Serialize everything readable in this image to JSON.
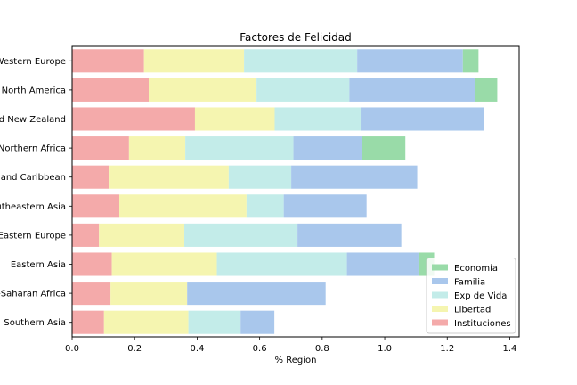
{
  "chart_data": {
    "type": "bar",
    "orientation": "horizontal",
    "stacked": true,
    "title": "Factores de Felicidad",
    "xlabel": "% Region",
    "ylabel": "",
    "xlim": [
      0,
      1.43
    ],
    "xticks": [
      0.0,
      0.2,
      0.4,
      0.6,
      0.8,
      1.0,
      1.2,
      1.4
    ],
    "xtick_labels": [
      "0.0",
      "0.2",
      "0.4",
      "0.6",
      "0.8",
      "1.0",
      "1.2",
      "1.4"
    ],
    "categories": [
      "Western Europe",
      "North America",
      "Australia and New Zealand",
      "Middle East and Northern Africa",
      "Latin America and Caribbean",
      "Southeastern Asia",
      "Central and Eastern Europe",
      "Eastern Asia",
      "Sub-Saharan Africa",
      "Southern Asia"
    ],
    "series": [
      {
        "name": "Instituciones",
        "color": "#f4aaaa",
        "values": [
          0.23,
          0.245,
          0.393,
          0.182,
          0.117,
          0.151,
          0.086,
          0.127,
          0.123,
          0.102
        ]
      },
      {
        "name": "Libertad",
        "color": "#f5f5b0",
        "values": [
          0.32,
          0.345,
          0.255,
          0.18,
          0.384,
          0.407,
          0.273,
          0.336,
          0.245,
          0.27
        ]
      },
      {
        "name": "Exp de Vida",
        "color": "#c3ece9",
        "values": [
          0.362,
          0.297,
          0.275,
          0.346,
          0.2,
          0.119,
          0.362,
          0.416,
          0,
          0.167
        ]
      },
      {
        "name": "Familia",
        "color": "#a9c7ec",
        "values": [
          0.338,
          0.403,
          0.395,
          0.218,
          0.403,
          0.265,
          0.332,
          0.229,
          0.443,
          0.108
        ]
      },
      {
        "name": "Economia",
        "color": "#99dba8",
        "values": [
          0.05,
          0.07,
          0,
          0.14,
          0,
          0,
          0,
          0.05,
          0,
          0
        ]
      }
    ],
    "legend_order": [
      "Economia",
      "Familia",
      "Exp de Vida",
      "Libertad",
      "Instituciones"
    ],
    "legend_position": "lower-right",
    "grid": false
  }
}
